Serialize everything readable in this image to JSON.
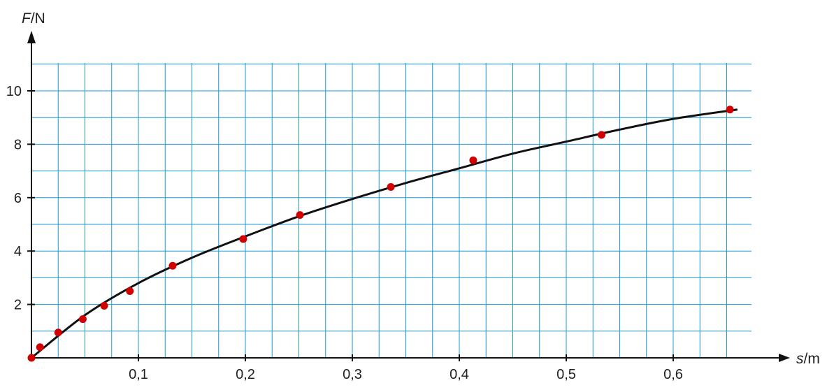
{
  "chart_data": {
    "type": "scatter",
    "xlabel_var": "s",
    "xlabel_unit": "/m",
    "ylabel_var": "F",
    "ylabel_unit": "/N",
    "xlim": [
      0,
      0.675
    ],
    "ylim": [
      0,
      11
    ],
    "grid": true,
    "grid_color": "#1a9ad6",
    "curve_color": "#111111",
    "point_color": "#d00000",
    "x_ticks": [
      {
        "value": 0.1,
        "label": "0,1"
      },
      {
        "value": 0.2,
        "label": "0,2"
      },
      {
        "value": 0.3,
        "label": "0,3"
      },
      {
        "value": 0.4,
        "label": "0,4"
      },
      {
        "value": 0.5,
        "label": "0,5"
      },
      {
        "value": 0.6,
        "label": "0,6"
      }
    ],
    "y_ticks": [
      {
        "value": 2,
        "label": "2"
      },
      {
        "value": 4,
        "label": "4"
      },
      {
        "value": 6,
        "label": "6"
      },
      {
        "value": 8,
        "label": "8"
      },
      {
        "value": 10,
        "label": "10"
      }
    ],
    "points": [
      {
        "x": 0.0,
        "y": 0.0
      },
      {
        "x": 0.008,
        "y": 0.4
      },
      {
        "x": 0.025,
        "y": 0.95
      },
      {
        "x": 0.048,
        "y": 1.45
      },
      {
        "x": 0.068,
        "y": 1.95
      },
      {
        "x": 0.092,
        "y": 2.5
      },
      {
        "x": 0.132,
        "y": 3.45
      },
      {
        "x": 0.198,
        "y": 4.45
      },
      {
        "x": 0.251,
        "y": 5.35
      },
      {
        "x": 0.336,
        "y": 6.4
      },
      {
        "x": 0.413,
        "y": 7.4
      },
      {
        "x": 0.533,
        "y": 8.35
      },
      {
        "x": 0.653,
        "y": 9.3
      }
    ],
    "fit_curve": [
      {
        "x": 0.0,
        "y": 0.0
      },
      {
        "x": 0.05,
        "y": 1.6
      },
      {
        "x": 0.1,
        "y": 2.8
      },
      {
        "x": 0.15,
        "y": 3.75
      },
      {
        "x": 0.2,
        "y": 4.55
      },
      {
        "x": 0.25,
        "y": 5.3
      },
      {
        "x": 0.3,
        "y": 5.95
      },
      {
        "x": 0.35,
        "y": 6.55
      },
      {
        "x": 0.4,
        "y": 7.1
      },
      {
        "x": 0.45,
        "y": 7.65
      },
      {
        "x": 0.5,
        "y": 8.1
      },
      {
        "x": 0.55,
        "y": 8.55
      },
      {
        "x": 0.6,
        "y": 8.95
      },
      {
        "x": 0.66,
        "y": 9.3
      }
    ]
  }
}
